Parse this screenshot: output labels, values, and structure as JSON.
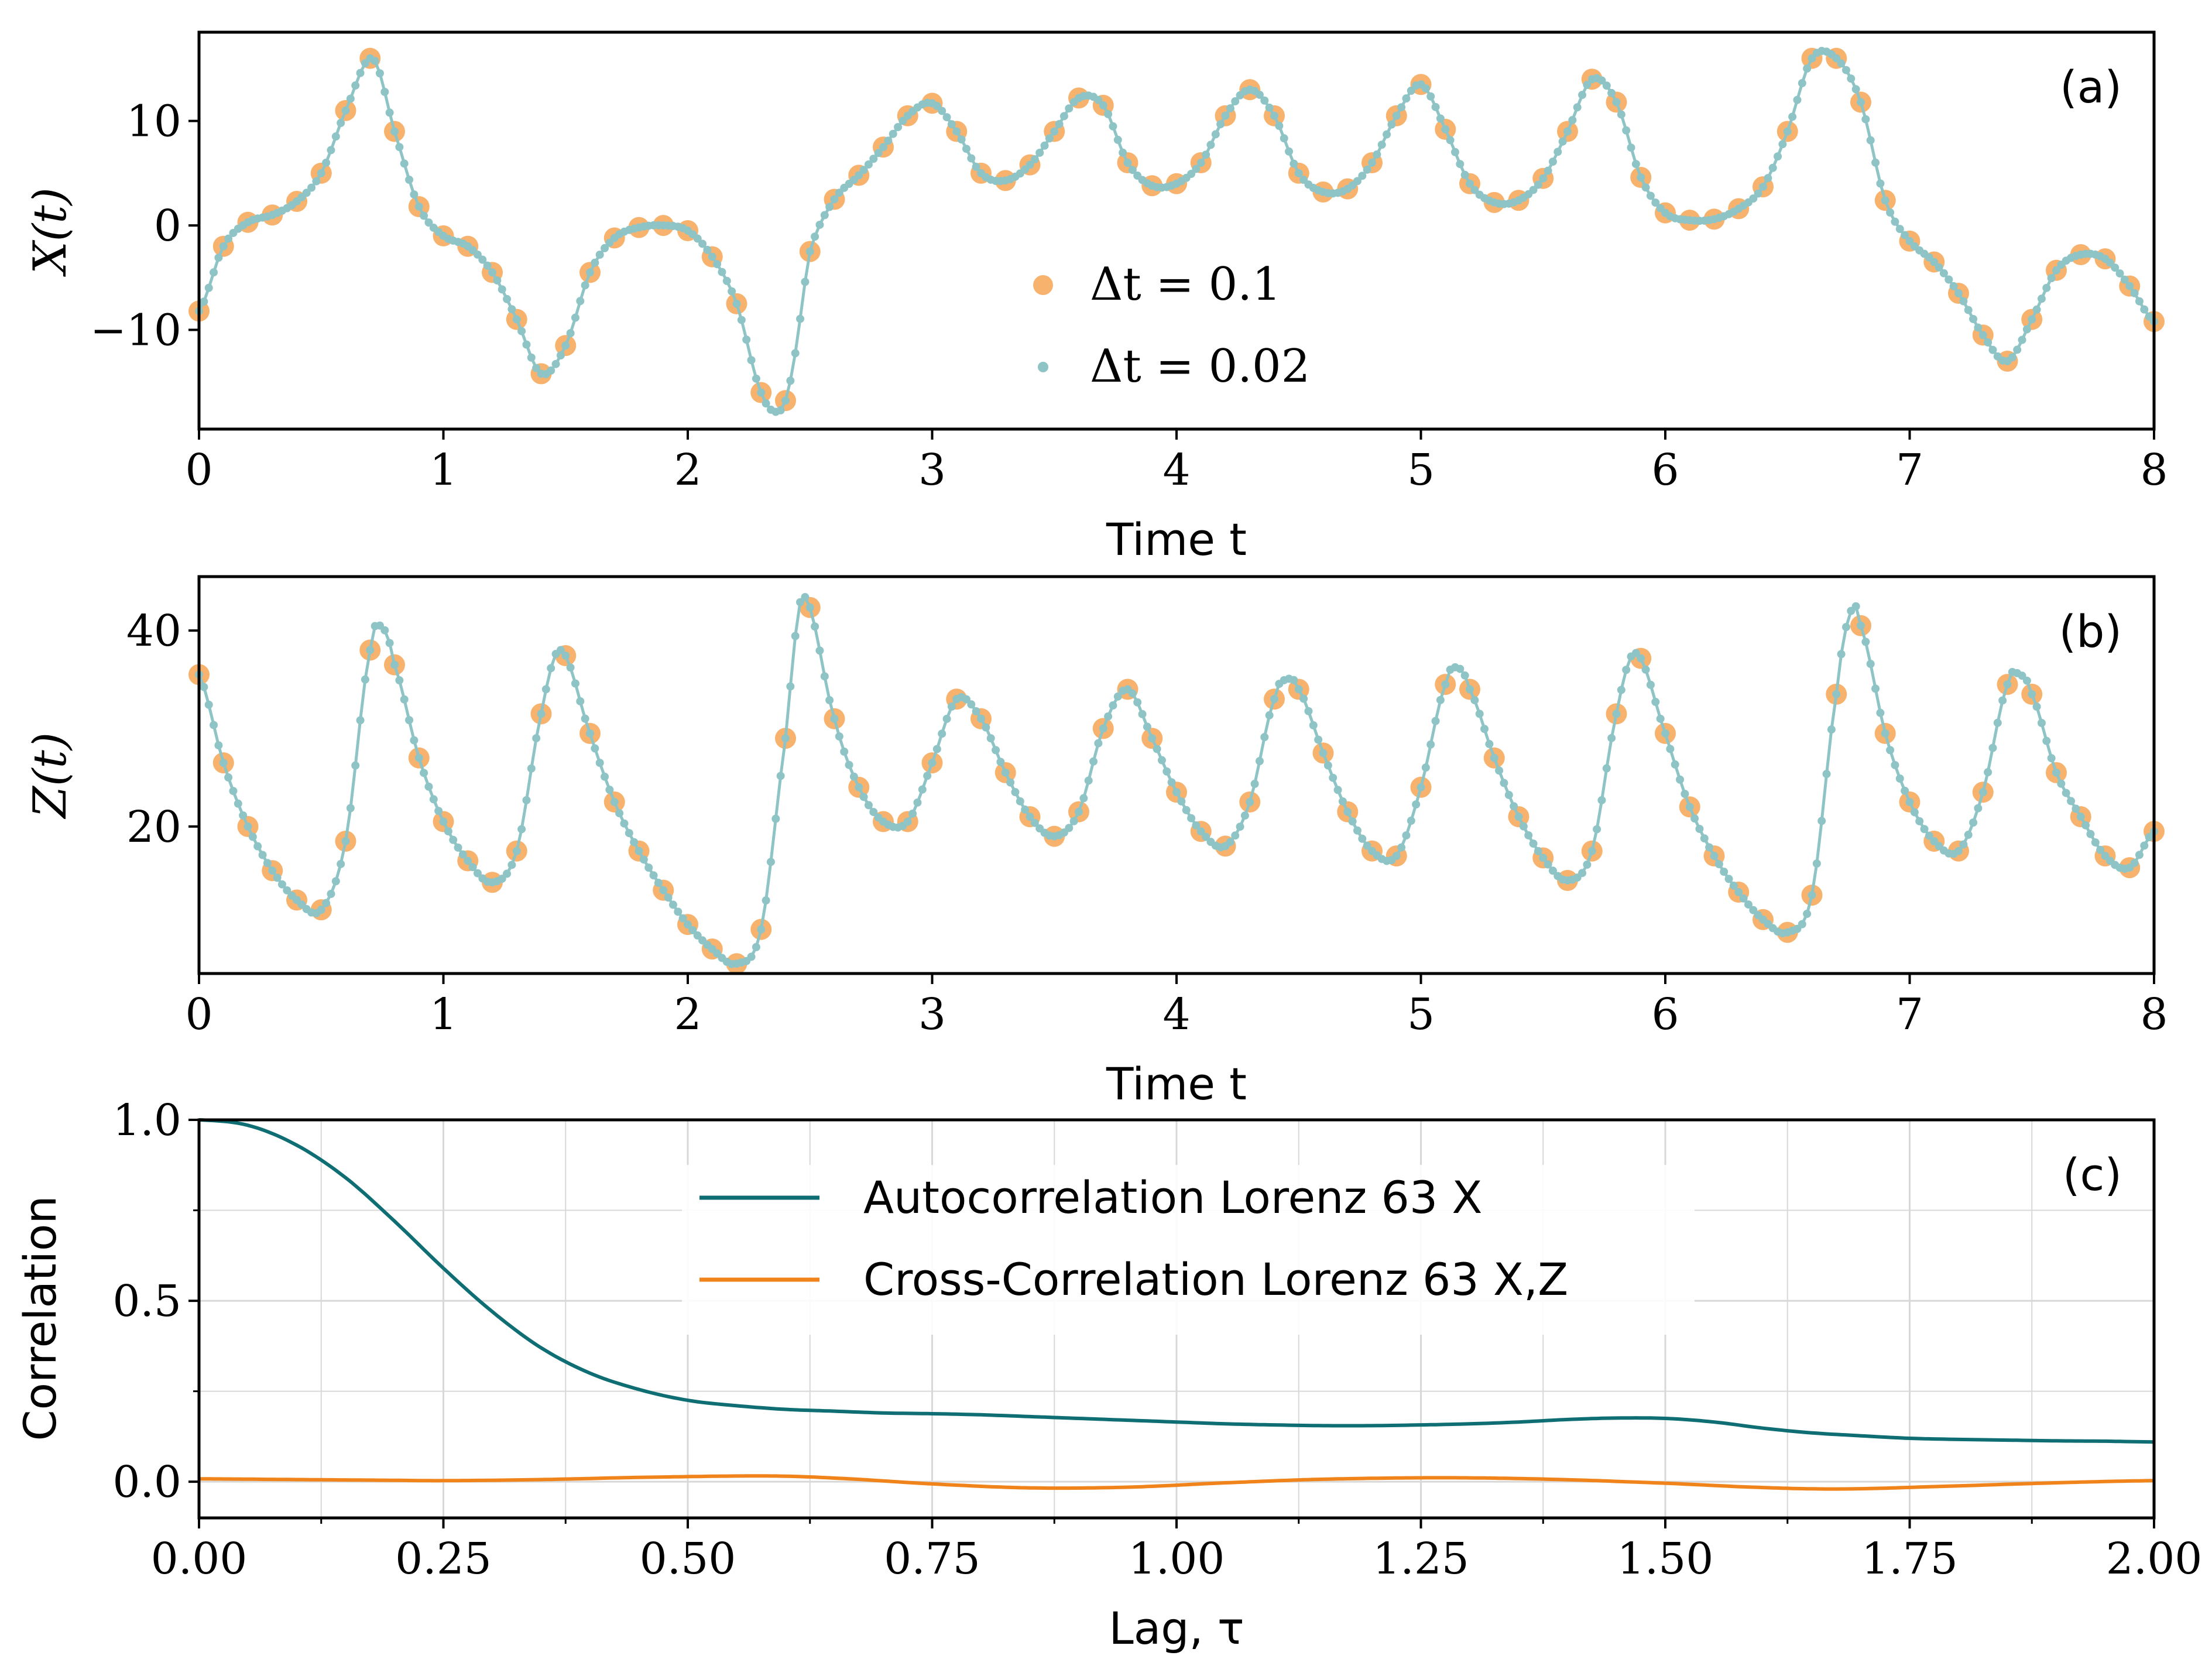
{
  "chart_data": [
    {
      "panel": "(a)",
      "type": "line",
      "xlabel": "Time t",
      "ylabel": "X(t)",
      "xlim": [
        0,
        8
      ],
      "ylim": [
        -19.5,
        18.5
      ],
      "xticks": [
        "0",
        "1",
        "2",
        "3",
        "4",
        "5",
        "6",
        "7",
        "8"
      ],
      "yticks": [
        {
          "value": 10,
          "label": "10"
        },
        {
          "value": 0,
          "label": "0"
        },
        {
          "value": -10,
          "label": "−10"
        }
      ],
      "legend": [
        {
          "label": "Δt = 0.1",
          "style": "orange-dot"
        },
        {
          "label": "Δt = 0.02",
          "style": "teal-dot"
        }
      ],
      "colors": {
        "coarse": "#f7b26e",
        "fine": "#8fc4c6"
      },
      "knots": [
        [
          0,
          -8.2
        ],
        [
          0.1,
          -2
        ],
        [
          0.2,
          0.3
        ],
        [
          0.3,
          1.0
        ],
        [
          0.4,
          2.3
        ],
        [
          0.5,
          5
        ],
        [
          0.6,
          11
        ],
        [
          0.71,
          16
        ],
        [
          0.8,
          9
        ],
        [
          0.9,
          1.8
        ],
        [
          1.0,
          -1
        ],
        [
          1.1,
          -2
        ],
        [
          1.2,
          -4.5
        ],
        [
          1.3,
          -9
        ],
        [
          1.4,
          -14.2
        ],
        [
          1.5,
          -11.5
        ],
        [
          1.6,
          -4.5
        ],
        [
          1.7,
          -1.2
        ],
        [
          1.8,
          -0.2
        ],
        [
          1.9,
          0
        ],
        [
          2.0,
          -0.5
        ],
        [
          2.1,
          -3
        ],
        [
          2.2,
          -7.5
        ],
        [
          2.3,
          -16
        ],
        [
          2.38,
          -17.7
        ],
        [
          2.43,
          -13.5
        ],
        [
          2.5,
          -2.5
        ],
        [
          2.6,
          2.5
        ],
        [
          2.7,
          4.8
        ],
        [
          2.8,
          7.5
        ],
        [
          2.9,
          10.5
        ],
        [
          3.0,
          11.7
        ],
        [
          3.1,
          9
        ],
        [
          3.2,
          5
        ],
        [
          3.3,
          4.3
        ],
        [
          3.4,
          5.8
        ],
        [
          3.5,
          9
        ],
        [
          3.6,
          12.2
        ],
        [
          3.7,
          11.5
        ],
        [
          3.8,
          6
        ],
        [
          3.9,
          3.8
        ],
        [
          4.0,
          4
        ],
        [
          4.1,
          6
        ],
        [
          4.2,
          10.5
        ],
        [
          4.3,
          13
        ],
        [
          4.4,
          10.5
        ],
        [
          4.5,
          5
        ],
        [
          4.6,
          3.2
        ],
        [
          4.7,
          3.5
        ],
        [
          4.8,
          6
        ],
        [
          4.9,
          10.5
        ],
        [
          5.0,
          13.5
        ],
        [
          5.1,
          9.2
        ],
        [
          5.2,
          4
        ],
        [
          5.3,
          2.2
        ],
        [
          5.4,
          2.4
        ],
        [
          5.5,
          4.5
        ],
        [
          5.6,
          9
        ],
        [
          5.7,
          14
        ],
        [
          5.8,
          11.8
        ],
        [
          5.9,
          4.6
        ],
        [
          6.0,
          1.2
        ],
        [
          6.1,
          0.5
        ],
        [
          6.2,
          0.6
        ],
        [
          6.3,
          1.6
        ],
        [
          6.4,
          3.7
        ],
        [
          6.5,
          9
        ],
        [
          6.6,
          16
        ],
        [
          6.7,
          16
        ],
        [
          6.8,
          11.8
        ],
        [
          6.9,
          2.4
        ],
        [
          7.0,
          -1.5
        ],
        [
          7.1,
          -3.5
        ],
        [
          7.2,
          -6.5
        ],
        [
          7.3,
          -10.5
        ],
        [
          7.4,
          -13
        ],
        [
          7.5,
          -9
        ],
        [
          7.6,
          -4.3
        ],
        [
          7.7,
          -2.8
        ],
        [
          7.8,
          -3.2
        ],
        [
          7.9,
          -5.8
        ],
        [
          8.0,
          -9.2
        ]
      ]
    },
    {
      "panel": "(b)",
      "type": "line",
      "xlabel": "Time t",
      "ylabel": "Z(t)",
      "xlim": [
        0,
        8
      ],
      "ylim": [
        5,
        45.5
      ],
      "xticks": [
        "0",
        "1",
        "2",
        "3",
        "4",
        "5",
        "6",
        "7",
        "8"
      ],
      "yticks": [
        {
          "value": 40,
          "label": "40"
        },
        {
          "value": 20,
          "label": "20"
        }
      ],
      "colors": {
        "coarse": "#f7b26e",
        "fine": "#8fc4c6"
      },
      "knots": [
        [
          0,
          35.5
        ],
        [
          0.1,
          26.5
        ],
        [
          0.2,
          20
        ],
        [
          0.3,
          15.5
        ],
        [
          0.4,
          12.5
        ],
        [
          0.5,
          11.5
        ],
        [
          0.6,
          18.5
        ],
        [
          0.7,
          38
        ],
        [
          0.75,
          40.3
        ],
        [
          0.8,
          36.5
        ],
        [
          0.9,
          27
        ],
        [
          1.0,
          20.5
        ],
        [
          1.1,
          16.5
        ],
        [
          1.2,
          14.3
        ],
        [
          1.3,
          17.5
        ],
        [
          1.4,
          31.5
        ],
        [
          1.48,
          38
        ],
        [
          1.6,
          29.5
        ],
        [
          1.7,
          22.5
        ],
        [
          1.8,
          17.5
        ],
        [
          1.9,
          13.5
        ],
        [
          2.0,
          10
        ],
        [
          2.1,
          7.5
        ],
        [
          2.2,
          6
        ],
        [
          2.3,
          9.5
        ],
        [
          2.4,
          29
        ],
        [
          2.47,
          43.5
        ],
        [
          2.6,
          31
        ],
        [
          2.7,
          24
        ],
        [
          2.8,
          20.5
        ],
        [
          2.9,
          20.5
        ],
        [
          3.0,
          26.5
        ],
        [
          3.1,
          33
        ],
        [
          3.2,
          31
        ],
        [
          3.3,
          25.5
        ],
        [
          3.4,
          21
        ],
        [
          3.5,
          19
        ],
        [
          3.6,
          21.5
        ],
        [
          3.7,
          30
        ],
        [
          3.8,
          34
        ],
        [
          3.9,
          29
        ],
        [
          4.0,
          23.5
        ],
        [
          4.1,
          19.5
        ],
        [
          4.2,
          18
        ],
        [
          4.3,
          22.5
        ],
        [
          4.4,
          33
        ],
        [
          4.45,
          35
        ],
        [
          4.5,
          34
        ],
        [
          4.6,
          27.5
        ],
        [
          4.7,
          21.5
        ],
        [
          4.8,
          17.5
        ],
        [
          4.9,
          17
        ],
        [
          5.0,
          24
        ],
        [
          5.1,
          34.5
        ],
        [
          5.15,
          36.2
        ],
        [
          5.2,
          34
        ],
        [
          5.3,
          27
        ],
        [
          5.4,
          21
        ],
        [
          5.5,
          16.8
        ],
        [
          5.6,
          14.5
        ],
        [
          5.7,
          17.5
        ],
        [
          5.8,
          31.5
        ],
        [
          5.88,
          37.7
        ],
        [
          6.0,
          29.5
        ],
        [
          6.1,
          22
        ],
        [
          6.2,
          17
        ],
        [
          6.3,
          13.3
        ],
        [
          6.4,
          10.5
        ],
        [
          6.5,
          9.2
        ],
        [
          6.6,
          13
        ],
        [
          6.7,
          33.5
        ],
        [
          6.76,
          42
        ],
        [
          6.8,
          40.5
        ],
        [
          6.9,
          29.5
        ],
        [
          7.0,
          22.5
        ],
        [
          7.1,
          18.5
        ],
        [
          7.2,
          17.5
        ],
        [
          7.3,
          23.5
        ],
        [
          7.4,
          34.5
        ],
        [
          7.45,
          35.5
        ],
        [
          7.5,
          33.5
        ],
        [
          7.6,
          25.5
        ],
        [
          7.7,
          21
        ],
        [
          7.8,
          17
        ],
        [
          7.9,
          15.8
        ],
        [
          8.0,
          19.5
        ]
      ]
    },
    {
      "panel": "(c)",
      "type": "line",
      "xlabel": "Lag, τ",
      "ylabel": "Correlation",
      "xlim": [
        0,
        2
      ],
      "ylim": [
        -0.1,
        1.0
      ],
      "xticks": [
        "0.00",
        "0.25",
        "0.50",
        "0.75",
        "1.00",
        "1.25",
        "1.50",
        "1.75",
        "2.00"
      ],
      "yticks": [
        {
          "value": 1.0,
          "label": "1.0"
        },
        {
          "value": 0.5,
          "label": "0.5"
        },
        {
          "value": 0.0,
          "label": "0.0"
        }
      ],
      "grid": true,
      "legend": [
        {
          "label": "Autocorrelation Lorenz 63 X",
          "color": "#0e6e73"
        },
        {
          "label": "Cross-Correlation Lorenz 63 X,Z",
          "color": "#f0831a"
        }
      ],
      "series": [
        {
          "name": "Autocorrelation Lorenz 63 X",
          "color": "#0e6e73",
          "points": [
            [
              0,
              1.0
            ],
            [
              0.05,
              0.985
            ],
            [
              0.1,
              0.93
            ],
            [
              0.15,
              0.84
            ],
            [
              0.2,
              0.72
            ],
            [
              0.25,
              0.59
            ],
            [
              0.3,
              0.47
            ],
            [
              0.35,
              0.37
            ],
            [
              0.4,
              0.3
            ],
            [
              0.45,
              0.255
            ],
            [
              0.5,
              0.225
            ],
            [
              0.55,
              0.21
            ],
            [
              0.6,
              0.2
            ],
            [
              0.65,
              0.195
            ],
            [
              0.7,
              0.19
            ],
            [
              0.75,
              0.188
            ],
            [
              0.8,
              0.185
            ],
            [
              0.85,
              0.18
            ],
            [
              0.9,
              0.175
            ],
            [
              0.95,
              0.17
            ],
            [
              1.0,
              0.165
            ],
            [
              1.05,
              0.16
            ],
            [
              1.1,
              0.157
            ],
            [
              1.15,
              0.155
            ],
            [
              1.2,
              0.155
            ],
            [
              1.25,
              0.157
            ],
            [
              1.3,
              0.16
            ],
            [
              1.35,
              0.165
            ],
            [
              1.4,
              0.172
            ],
            [
              1.45,
              0.176
            ],
            [
              1.5,
              0.175
            ],
            [
              1.55,
              0.165
            ],
            [
              1.6,
              0.148
            ],
            [
              1.65,
              0.135
            ],
            [
              1.7,
              0.127
            ],
            [
              1.75,
              0.12
            ],
            [
              1.8,
              0.117
            ],
            [
              1.85,
              0.115
            ],
            [
              1.9,
              0.113
            ],
            [
              1.95,
              0.112
            ],
            [
              2.0,
              0.11
            ]
          ]
        },
        {
          "name": "Cross-Correlation Lorenz 63 X,Z",
          "color": "#f0831a",
          "points": [
            [
              0,
              0.008
            ],
            [
              0.1,
              0.006
            ],
            [
              0.2,
              0.004
            ],
            [
              0.25,
              0.003
            ],
            [
              0.35,
              0.006
            ],
            [
              0.45,
              0.012
            ],
            [
              0.58,
              0.016
            ],
            [
              0.65,
              0.01
            ],
            [
              0.75,
              -0.006
            ],
            [
              0.85,
              -0.017
            ],
            [
              0.95,
              -0.015
            ],
            [
              1.05,
              -0.003
            ],
            [
              1.15,
              0.007
            ],
            [
              1.27,
              0.011
            ],
            [
              1.38,
              0.007
            ],
            [
              1.5,
              -0.004
            ],
            [
              1.6,
              -0.016
            ],
            [
              1.68,
              -0.02
            ],
            [
              1.78,
              -0.013
            ],
            [
              1.9,
              -0.003
            ],
            [
              2.0,
              0.003
            ]
          ]
        }
      ]
    }
  ]
}
